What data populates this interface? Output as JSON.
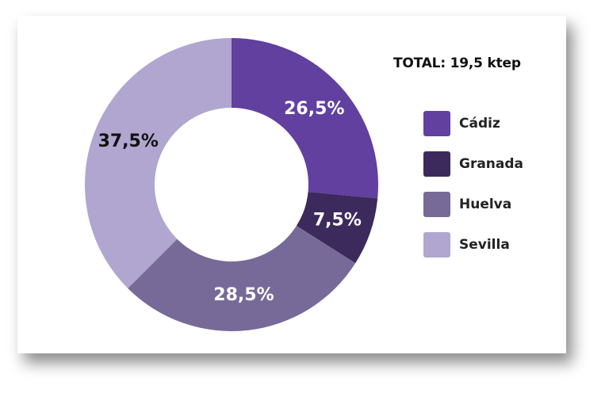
{
  "chart_data": {
    "type": "pie",
    "subtype": "donut",
    "title": "TOTAL: 19,5 ktep",
    "slices": [
      {
        "name": "Cádiz",
        "value": 26.5,
        "label": "26,5%",
        "color": "#6140a0",
        "label_color": "#ffffff"
      },
      {
        "name": "Granada",
        "value": 7.5,
        "label": "7,5%",
        "color": "#3c2a5c",
        "label_color": "#ffffff"
      },
      {
        "name": "Huelva",
        "value": 28.5,
        "label": "28,5%",
        "color": "#776a98",
        "label_color": "#ffffff"
      },
      {
        "name": "Sevilla",
        "value": 37.5,
        "label": "37,5%",
        "color": "#b0a6cf",
        "label_color": "#111111"
      }
    ],
    "legend_position": "right"
  }
}
